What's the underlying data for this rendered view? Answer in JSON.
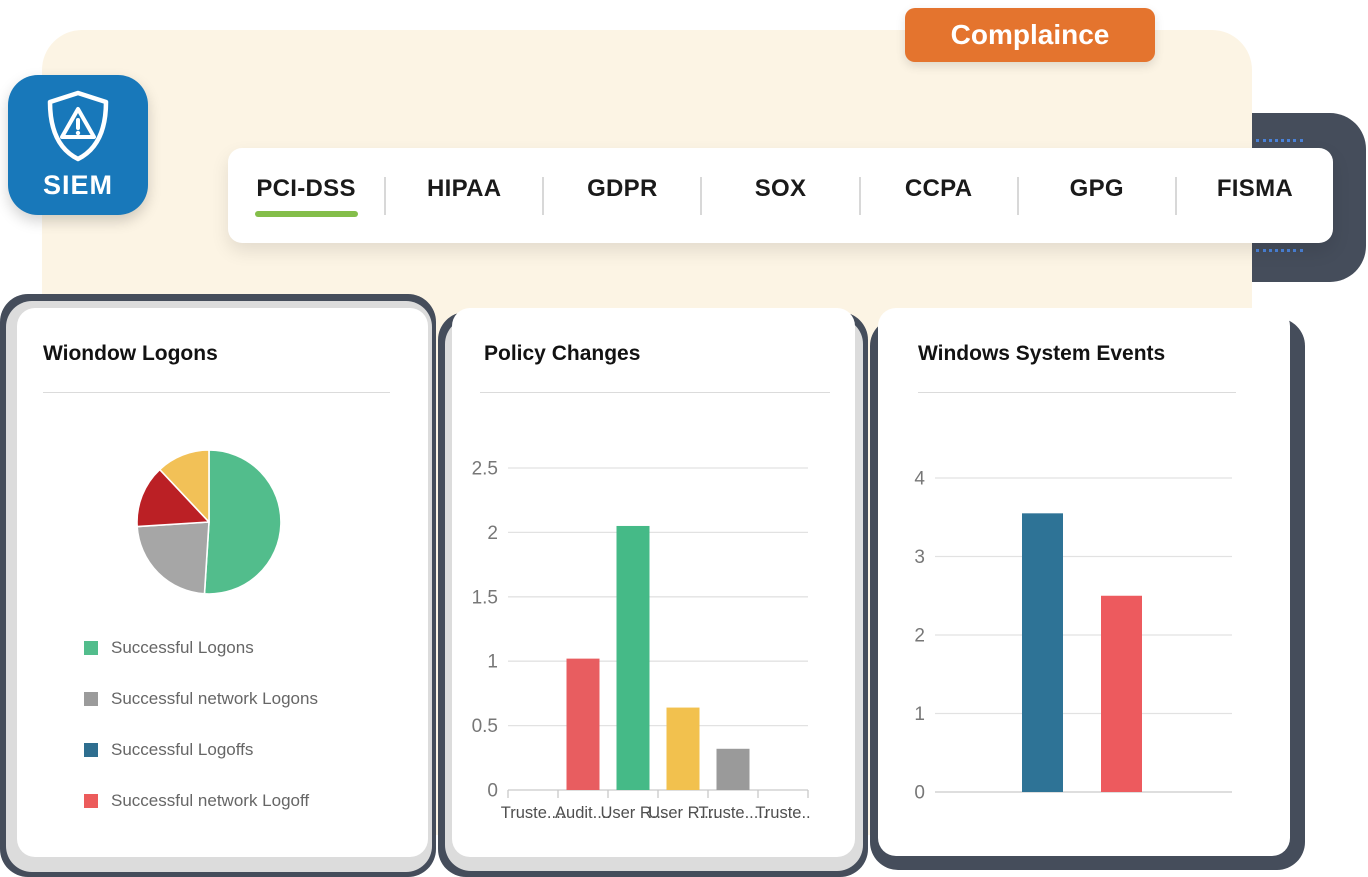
{
  "badge": {
    "label": "Complaince",
    "bg": "#E4742E"
  },
  "app_icon": {
    "label": "SIEM",
    "bg": "#1878BA",
    "icon": "shield-alert-icon"
  },
  "tabs": {
    "active_underline_color": "#84BE4A",
    "items": [
      {
        "label": "PCI-DSS",
        "active": true
      },
      {
        "label": "HIPAA",
        "active": false
      },
      {
        "label": "GDPR",
        "active": false
      },
      {
        "label": "SOX",
        "active": false
      },
      {
        "label": "CCPA",
        "active": false
      },
      {
        "label": "GPG",
        "active": false
      },
      {
        "label": "FISMA",
        "active": false
      }
    ]
  },
  "cards": [
    {
      "title": "Wiondow Logons",
      "chart_data": {
        "type": "pie",
        "title": "Wiondow Logons",
        "slices": [
          {
            "name": "Successful Logons",
            "percent": 51,
            "color": "#52BD8C"
          },
          {
            "name": "Successful network Logons",
            "percent": 23,
            "color": "#A6A6A6"
          },
          {
            "name": "Successful network Logoff",
            "percent": 14,
            "color": "#BB2025"
          },
          {
            "name": "Successful Logoffs",
            "percent": 12,
            "color": "#F2C157"
          }
        ],
        "legend_position": "bottom-left"
      },
      "legend": [
        {
          "label": "Successful Logons",
          "color": "#52BD8C"
        },
        {
          "label": "Successful network Logons",
          "color": "#9B9B9B"
        },
        {
          "label": "Successful Logoffs",
          "color": "#2E6E8F"
        },
        {
          "label": "Successful network Logoff",
          "color": "#EC5B5B"
        }
      ]
    },
    {
      "title": "Policy Changes",
      "chart_data": {
        "type": "bar",
        "title": "Policy Changes",
        "categories": [
          "Truste....",
          "Audit....",
          "User R...",
          "User R....",
          "Truste.....",
          "Truste.."
        ],
        "values": [
          0,
          1.02,
          2.05,
          0.64,
          0.32,
          0
        ],
        "bar_colors": [
          null,
          "#E85D60",
          "#45BA87",
          "#F2C14E",
          "#9A9A9A",
          null
        ],
        "ylim": [
          0,
          2.5
        ],
        "yticks": [
          0,
          0.5,
          1,
          1.5,
          2,
          2.5
        ],
        "grid": true,
        "xlabel": "",
        "ylabel": ""
      }
    },
    {
      "title": "Windows System Events",
      "chart_data": {
        "type": "bar",
        "title": "Windows System Events",
        "categories": [
          "",
          ""
        ],
        "values": [
          3.55,
          2.5
        ],
        "bar_colors": [
          "#2E7396",
          "#ED5A5E"
        ],
        "ylim": [
          0,
          4
        ],
        "yticks": [
          0,
          1,
          2,
          3,
          4
        ],
        "grid": true,
        "xlabel": "",
        "ylabel": ""
      }
    }
  ]
}
